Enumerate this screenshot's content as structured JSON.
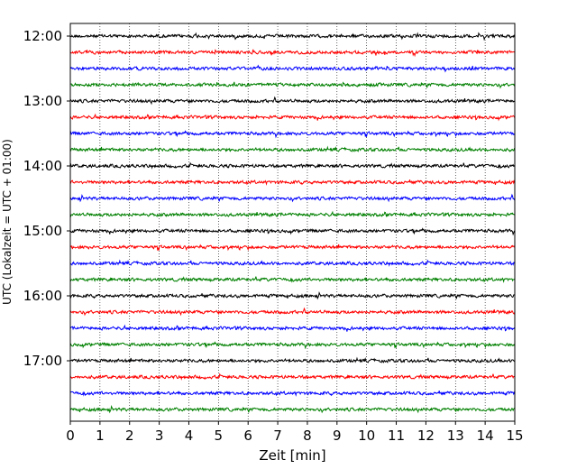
{
  "chart_data": {
    "type": "line",
    "title": "",
    "xlabel": "Zeit  [min]",
    "ylabel": "UTC (Lokalzeit = UTC + 01:00)",
    "xlim": [
      0,
      15
    ],
    "xticks": [
      "0",
      "1",
      "2",
      "3",
      "4",
      "5",
      "6",
      "7",
      "8",
      "9",
      "10",
      "11",
      "12",
      "13",
      "14",
      "15"
    ],
    "yticks": [
      "12:00",
      "13:00",
      "14:00",
      "15:00",
      "16:00",
      "17:00"
    ],
    "trace_interval_min": 15,
    "start_time": "12:00",
    "end_time": "17:45",
    "trace_colors": [
      "#000000",
      "#ff0000",
      "#0000ff",
      "#008000"
    ],
    "grid": "vertical dotted at each minute",
    "traces": [
      {
        "start": "12:00",
        "color": "#000000"
      },
      {
        "start": "12:15",
        "color": "#ff0000"
      },
      {
        "start": "12:30",
        "color": "#0000ff"
      },
      {
        "start": "12:45",
        "color": "#008000"
      },
      {
        "start": "13:00",
        "color": "#000000"
      },
      {
        "start": "13:15",
        "color": "#ff0000"
      },
      {
        "start": "13:30",
        "color": "#0000ff"
      },
      {
        "start": "13:45",
        "color": "#008000"
      },
      {
        "start": "14:00",
        "color": "#000000"
      },
      {
        "start": "14:15",
        "color": "#ff0000"
      },
      {
        "start": "14:30",
        "color": "#0000ff"
      },
      {
        "start": "14:45",
        "color": "#008000"
      },
      {
        "start": "15:00",
        "color": "#000000"
      },
      {
        "start": "15:15",
        "color": "#ff0000"
      },
      {
        "start": "15:30",
        "color": "#0000ff"
      },
      {
        "start": "15:45",
        "color": "#008000"
      },
      {
        "start": "16:00",
        "color": "#000000"
      },
      {
        "start": "16:15",
        "color": "#ff0000"
      },
      {
        "start": "16:30",
        "color": "#0000ff"
      },
      {
        "start": "16:45",
        "color": "#008000"
      },
      {
        "start": "17:00",
        "color": "#000000"
      },
      {
        "start": "17:15",
        "color": "#ff0000"
      },
      {
        "start": "17:30",
        "color": "#0000ff"
      },
      {
        "start": "17:45",
        "color": "#008000"
      }
    ]
  }
}
